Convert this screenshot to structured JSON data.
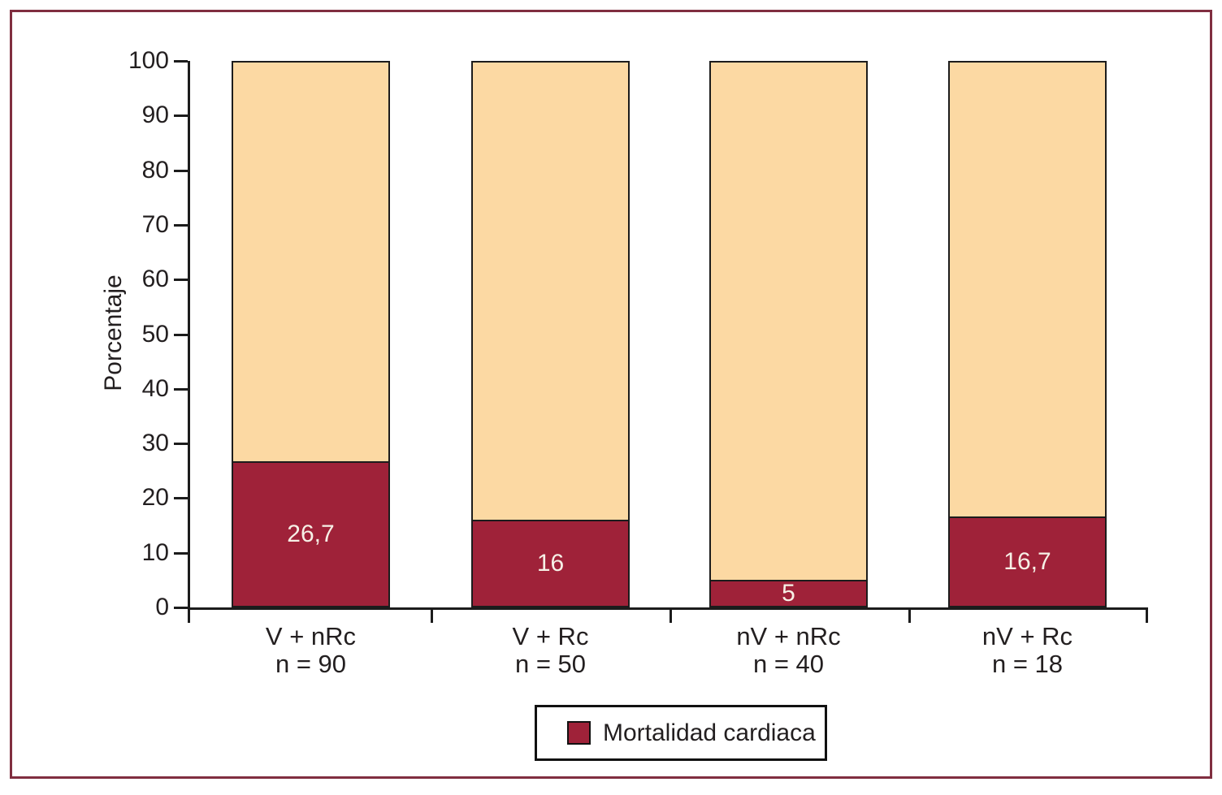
{
  "frame": {
    "border_color": "#802e40"
  },
  "chart_data": {
    "type": "bar",
    "stacked": true,
    "title": "",
    "xlabel": "",
    "ylabel": "Porcentaje",
    "ylim": [
      0,
      100
    ],
    "yticks": [
      0,
      10,
      20,
      30,
      40,
      50,
      60,
      70,
      80,
      90,
      100
    ],
    "grid": false,
    "legend_position": "bottom-center",
    "categories": [
      {
        "group": "V + nRc",
        "n": "n = 90"
      },
      {
        "group": "V + Rc",
        "n": "n = 50"
      },
      {
        "group": "nV + nRc",
        "n": "n = 40"
      },
      {
        "group": "nV + Rc",
        "n": "n = 18"
      }
    ],
    "series": [
      {
        "name": "Mortalidad cardiaca",
        "color": "#9f2239",
        "values": [
          26.7,
          16,
          5,
          16.7
        ],
        "value_labels": [
          "26,7",
          "16",
          "5",
          "16,7"
        ],
        "value_label_color": "#f6f0e6"
      },
      {
        "name": "",
        "color": "#fcd9a3",
        "values": [
          73.3,
          84,
          95,
          83.3
        ]
      }
    ]
  },
  "legend": {
    "label": "Mortalidad cardiaca",
    "swatch_color": "#9f2239"
  },
  "axis": {
    "color": "#1c1c1c",
    "text_color": "#231f20"
  }
}
